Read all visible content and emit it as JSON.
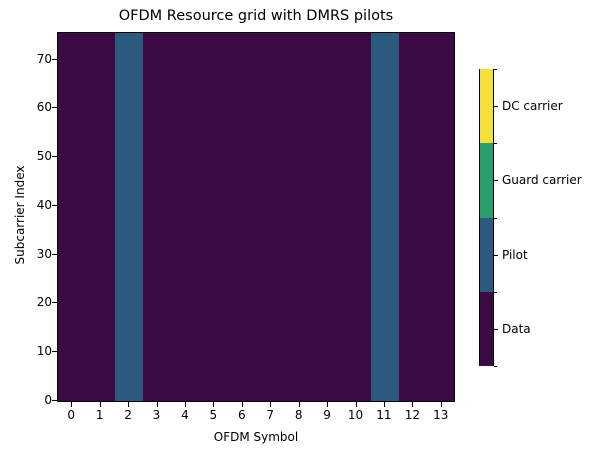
{
  "chart_data": {
    "type": "heatmap",
    "title": "OFDM Resource grid with DMRS pilots",
    "xlabel": "OFDM Symbol",
    "ylabel": "Subcarrier Index",
    "x_ticks": [
      "0",
      "1",
      "2",
      "3",
      "4",
      "5",
      "6",
      "7",
      "8",
      "9",
      "10",
      "11",
      "12",
      "13"
    ],
    "y_ticks": [
      "0",
      "10",
      "20",
      "30",
      "40",
      "50",
      "60",
      "70"
    ],
    "xlim": [
      -0.5,
      13.5
    ],
    "ylim": [
      -0.5,
      75.5
    ],
    "num_symbols": 14,
    "num_subcarriers": 76,
    "symbol_types": [
      "Data",
      "Data",
      "Pilot",
      "Data",
      "Data",
      "Data",
      "Data",
      "Data",
      "Data",
      "Data",
      "Data",
      "Pilot",
      "Data",
      "Data"
    ],
    "pilot_symbols": [
      2,
      11
    ],
    "colorbar": {
      "labels": [
        "Data",
        "Pilot",
        "Guard carrier",
        "DC carrier"
      ],
      "colors": [
        "#3b0a45",
        "#2c5a7e",
        "#28a06e",
        "#f7df3a"
      ]
    },
    "grid": false
  }
}
